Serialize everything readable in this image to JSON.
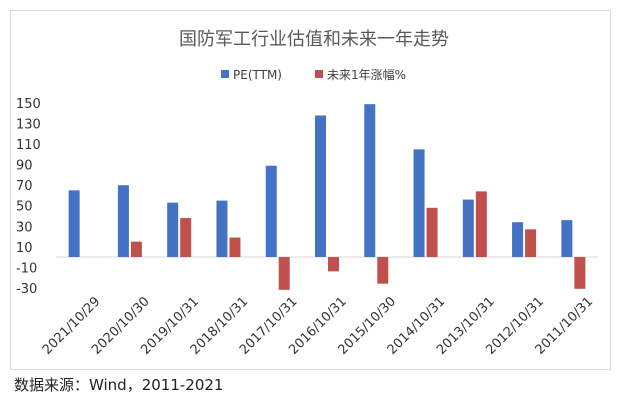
{
  "chart_data": {
    "type": "bar",
    "title": "国防军工行业估值和未来一年走势",
    "categories": [
      "2021/10/29",
      "2020/10/30",
      "2019/10/31",
      "2018/10/31",
      "2017/10/31",
      "2016/10/31",
      "2015/10/30",
      "2014/10/31",
      "2013/10/31",
      "2012/10/31",
      "2011/10/31"
    ],
    "series": [
      {
        "name": "PE(TTM)",
        "color": "#4472c4",
        "values": [
          65,
          70,
          53,
          55,
          89,
          138,
          149,
          105,
          56,
          34,
          36
        ]
      },
      {
        "name": "未来1年涨幅%",
        "color": "#c0504d",
        "values": [
          null,
          15,
          38,
          19,
          -32,
          -14,
          -26,
          48,
          64,
          27,
          -31
        ]
      }
    ],
    "yticks": [
      150,
      130,
      110,
      90,
      70,
      50,
      30,
      10,
      -10,
      -30
    ],
    "ylim": [
      -38,
      157
    ],
    "legend_position": "top-center",
    "xlabel": "",
    "ylabel": ""
  },
  "source_note": "数据来源：Wind，2011-2021"
}
